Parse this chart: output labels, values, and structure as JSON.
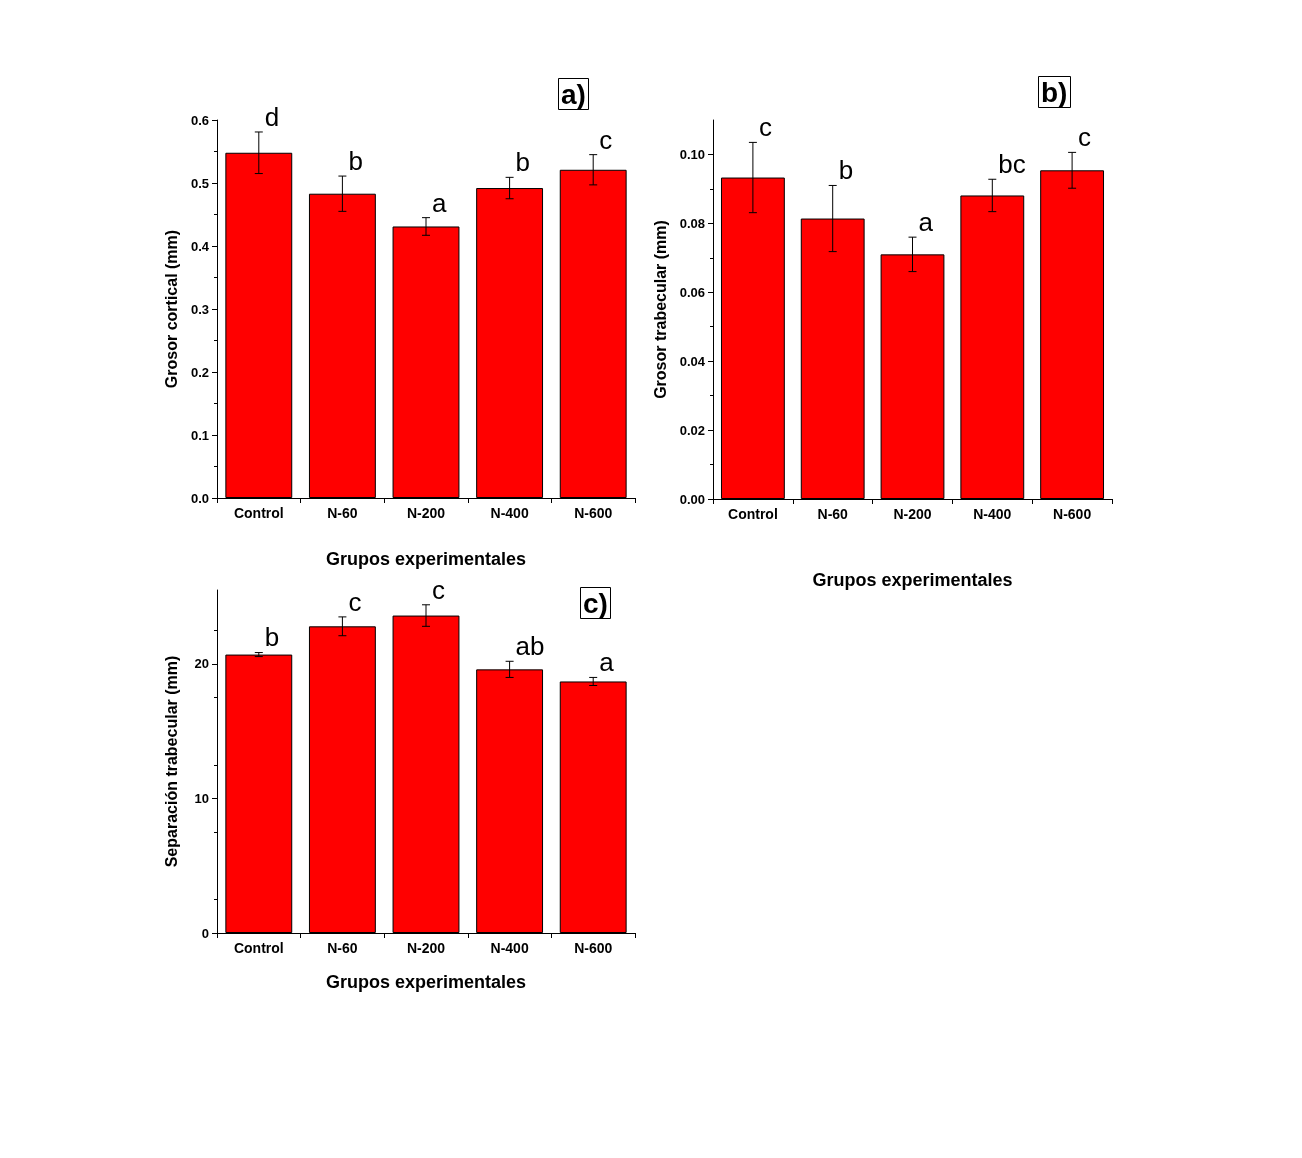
{
  "chart_data": [
    {
      "type": "bar",
      "title": "a)",
      "ylabel": "Grosor cortical (mm)",
      "xlabel": "Grupos experimentales",
      "categories": [
        "Control",
        "N-60",
        "N-200",
        "N-400",
        "N-600"
      ],
      "series": [
        {
          "color": "#ff0000",
          "values": [
            0.548,
            0.483,
            0.431,
            0.492,
            0.521
          ],
          "errors": [
            0.033,
            0.028,
            0.014,
            0.017,
            0.024
          ]
        }
      ],
      "ylim": [
        0,
        0.6
      ],
      "yticks": [
        {
          "value": 0,
          "label": "0.0"
        },
        0.1,
        0.2,
        0.3,
        0.4,
        0.5,
        0.6
      ],
      "annotations": [
        {
          "text": "d",
          "x": "Control",
          "y": 0.581
        },
        {
          "text": "b",
          "x": "N-60",
          "y": 0.511
        },
        {
          "text": "a",
          "x": "N-200",
          "y": 0.445
        },
        {
          "text": "b",
          "x": "N-400",
          "y": 0.509
        },
        {
          "text": "c",
          "x": "N-600",
          "y": 0.545
        }
      ]
    },
    {
      "type": "bar",
      "title": "b)",
      "ylabel": "Grosor trabecular (mm)",
      "xlabel": "Grupos experimentales",
      "categories": [
        "Control",
        "N-60",
        "N-200",
        "N-400",
        "N-600"
      ],
      "series": [
        {
          "color": "#ff0000",
          "values": [
            0.0933,
            0.0814,
            0.071,
            0.0881,
            0.0954
          ],
          "errors": [
            0.0102,
            0.0096,
            0.005,
            0.0047,
            0.0052
          ]
        }
      ],
      "ylim": [
        0,
        0.11
      ],
      "yticks": [
        {
          "value": 0,
          "label": "0.00"
        },
        {
          "value": 0.02,
          "label": "0.02"
        },
        {
          "value": 0.04,
          "label": "0.04"
        },
        {
          "value": 0.06,
          "label": "0.06"
        },
        {
          "value": 0.08,
          "label": "0.08"
        },
        {
          "value": 0.1,
          "label": "0.10"
        }
      ],
      "annotations": [
        {
          "text": "c",
          "x": "Control",
          "y": 0.1035
        },
        {
          "text": "b",
          "x": "N-60",
          "y": 0.091
        },
        {
          "text": "a",
          "x": "N-200",
          "y": 0.076
        },
        {
          "text": "bc",
          "x": "N-400",
          "y": 0.0928
        },
        {
          "text": "c",
          "x": "N-600",
          "y": 0.1006
        }
      ]
    },
    {
      "type": "bar",
      "title": "c)",
      "ylabel": "Separación trabecular (mm)",
      "xlabel": "Grupos experimentales",
      "categories": [
        "Control",
        "N-60",
        "N-200",
        "N-400",
        "N-600"
      ],
      "series": [
        {
          "color": "#ff0000",
          "values": [
            20.7,
            22.8,
            23.6,
            19.6,
            18.7
          ],
          "errors": [
            0.15,
            0.7,
            0.8,
            0.6,
            0.3
          ]
        }
      ],
      "ylim": [
        0,
        25.5
      ],
      "yticks": [
        0,
        10,
        20
      ],
      "annotations": [
        {
          "text": "b",
          "x": "Control",
          "y": 20.9
        },
        {
          "text": "c",
          "x": "N-60",
          "y": 23.5
        },
        {
          "text": "c",
          "x": "N-200",
          "y": 24.4
        },
        {
          "text": "ab",
          "x": "N-400",
          "y": 20.2
        },
        {
          "text": "a",
          "x": "N-600",
          "y": 19.0
        }
      ]
    }
  ]
}
